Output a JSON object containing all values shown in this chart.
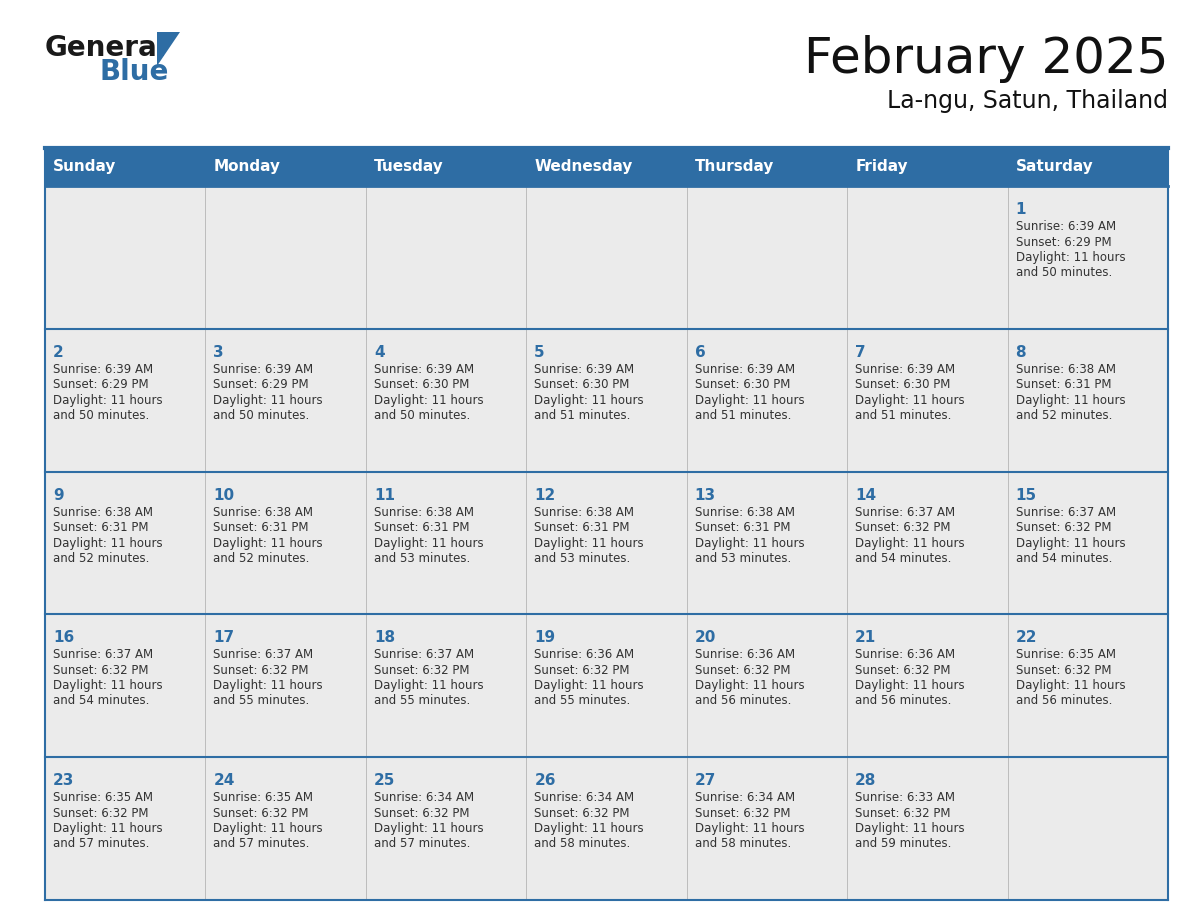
{
  "title": "February 2025",
  "subtitle": "La-ngu, Satun, Thailand",
  "header_bg_color": "#2E6DA4",
  "header_text_color": "#FFFFFF",
  "cell_bg_color": "#EBEBEB",
  "text_color": "#333333",
  "day_number_color": "#2E6DA4",
  "border_color": "#2E6DA4",
  "line_color": "#6699CC",
  "days_of_week": [
    "Sunday",
    "Monday",
    "Tuesday",
    "Wednesday",
    "Thursday",
    "Friday",
    "Saturday"
  ],
  "weeks": [
    [
      {
        "day": null,
        "sunrise": null,
        "sunset": null,
        "daylight": null
      },
      {
        "day": null,
        "sunrise": null,
        "sunset": null,
        "daylight": null
      },
      {
        "day": null,
        "sunrise": null,
        "sunset": null,
        "daylight": null
      },
      {
        "day": null,
        "sunrise": null,
        "sunset": null,
        "daylight": null
      },
      {
        "day": null,
        "sunrise": null,
        "sunset": null,
        "daylight": null
      },
      {
        "day": null,
        "sunrise": null,
        "sunset": null,
        "daylight": null
      },
      {
        "day": 1,
        "sunrise": "6:39 AM",
        "sunset": "6:29 PM",
        "daylight": "11 hours\nand 50 minutes."
      }
    ],
    [
      {
        "day": 2,
        "sunrise": "6:39 AM",
        "sunset": "6:29 PM",
        "daylight": "11 hours\nand 50 minutes."
      },
      {
        "day": 3,
        "sunrise": "6:39 AM",
        "sunset": "6:29 PM",
        "daylight": "11 hours\nand 50 minutes."
      },
      {
        "day": 4,
        "sunrise": "6:39 AM",
        "sunset": "6:30 PM",
        "daylight": "11 hours\nand 50 minutes."
      },
      {
        "day": 5,
        "sunrise": "6:39 AM",
        "sunset": "6:30 PM",
        "daylight": "11 hours\nand 51 minutes."
      },
      {
        "day": 6,
        "sunrise": "6:39 AM",
        "sunset": "6:30 PM",
        "daylight": "11 hours\nand 51 minutes."
      },
      {
        "day": 7,
        "sunrise": "6:39 AM",
        "sunset": "6:30 PM",
        "daylight": "11 hours\nand 51 minutes."
      },
      {
        "day": 8,
        "sunrise": "6:38 AM",
        "sunset": "6:31 PM",
        "daylight": "11 hours\nand 52 minutes."
      }
    ],
    [
      {
        "day": 9,
        "sunrise": "6:38 AM",
        "sunset": "6:31 PM",
        "daylight": "11 hours\nand 52 minutes."
      },
      {
        "day": 10,
        "sunrise": "6:38 AM",
        "sunset": "6:31 PM",
        "daylight": "11 hours\nand 52 minutes."
      },
      {
        "day": 11,
        "sunrise": "6:38 AM",
        "sunset": "6:31 PM",
        "daylight": "11 hours\nand 53 minutes."
      },
      {
        "day": 12,
        "sunrise": "6:38 AM",
        "sunset": "6:31 PM",
        "daylight": "11 hours\nand 53 minutes."
      },
      {
        "day": 13,
        "sunrise": "6:38 AM",
        "sunset": "6:31 PM",
        "daylight": "11 hours\nand 53 minutes."
      },
      {
        "day": 14,
        "sunrise": "6:37 AM",
        "sunset": "6:32 PM",
        "daylight": "11 hours\nand 54 minutes."
      },
      {
        "day": 15,
        "sunrise": "6:37 AM",
        "sunset": "6:32 PM",
        "daylight": "11 hours\nand 54 minutes."
      }
    ],
    [
      {
        "day": 16,
        "sunrise": "6:37 AM",
        "sunset": "6:32 PM",
        "daylight": "11 hours\nand 54 minutes."
      },
      {
        "day": 17,
        "sunrise": "6:37 AM",
        "sunset": "6:32 PM",
        "daylight": "11 hours\nand 55 minutes."
      },
      {
        "day": 18,
        "sunrise": "6:37 AM",
        "sunset": "6:32 PM",
        "daylight": "11 hours\nand 55 minutes."
      },
      {
        "day": 19,
        "sunrise": "6:36 AM",
        "sunset": "6:32 PM",
        "daylight": "11 hours\nand 55 minutes."
      },
      {
        "day": 20,
        "sunrise": "6:36 AM",
        "sunset": "6:32 PM",
        "daylight": "11 hours\nand 56 minutes."
      },
      {
        "day": 21,
        "sunrise": "6:36 AM",
        "sunset": "6:32 PM",
        "daylight": "11 hours\nand 56 minutes."
      },
      {
        "day": 22,
        "sunrise": "6:35 AM",
        "sunset": "6:32 PM",
        "daylight": "11 hours\nand 56 minutes."
      }
    ],
    [
      {
        "day": 23,
        "sunrise": "6:35 AM",
        "sunset": "6:32 PM",
        "daylight": "11 hours\nand 57 minutes."
      },
      {
        "day": 24,
        "sunrise": "6:35 AM",
        "sunset": "6:32 PM",
        "daylight": "11 hours\nand 57 minutes."
      },
      {
        "day": 25,
        "sunrise": "6:34 AM",
        "sunset": "6:32 PM",
        "daylight": "11 hours\nand 57 minutes."
      },
      {
        "day": 26,
        "sunrise": "6:34 AM",
        "sunset": "6:32 PM",
        "daylight": "11 hours\nand 58 minutes."
      },
      {
        "day": 27,
        "sunrise": "6:34 AM",
        "sunset": "6:32 PM",
        "daylight": "11 hours\nand 58 minutes."
      },
      {
        "day": 28,
        "sunrise": "6:33 AM",
        "sunset": "6:32 PM",
        "daylight": "11 hours\nand 59 minutes."
      },
      {
        "day": null,
        "sunrise": null,
        "sunset": null,
        "daylight": null
      }
    ]
  ],
  "logo_text1": "General",
  "logo_text2": "Blue",
  "logo_color1": "#1a1a1a",
  "logo_color2": "#2E6DA4",
  "fig_width": 11.88,
  "fig_height": 9.18,
  "dpi": 100
}
